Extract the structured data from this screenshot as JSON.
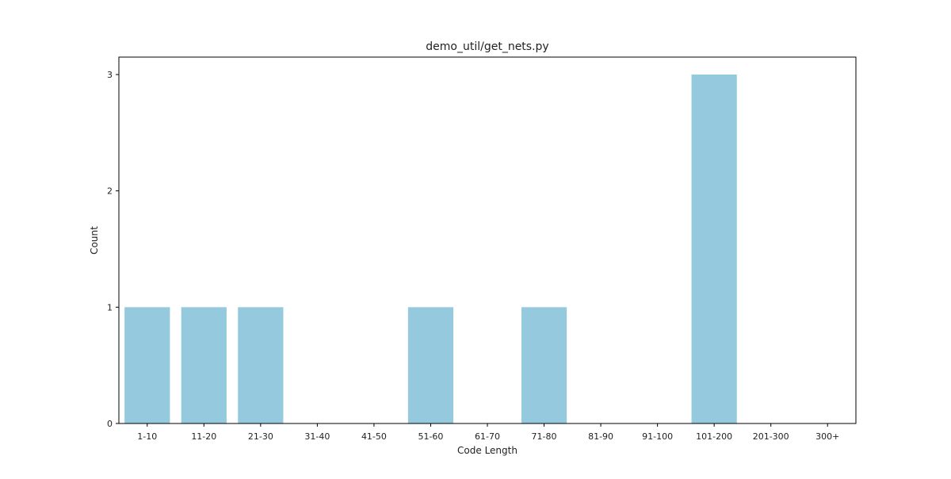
{
  "chart_data": {
    "type": "bar",
    "title": "demo_util/get_nets.py",
    "xlabel": "Code Length",
    "ylabel": "Count",
    "categories": [
      "1-10",
      "11-20",
      "21-30",
      "31-40",
      "41-50",
      "51-60",
      "61-70",
      "71-80",
      "81-90",
      "91-100",
      "101-200",
      "201-300",
      "300+"
    ],
    "values": [
      1,
      1,
      1,
      0,
      0,
      1,
      0,
      1,
      0,
      0,
      3,
      0,
      0
    ],
    "ylim": [
      0,
      3.15
    ],
    "yticks": [
      0,
      1,
      2,
      3
    ],
    "grid": false,
    "bar_color": "#95c9de"
  }
}
